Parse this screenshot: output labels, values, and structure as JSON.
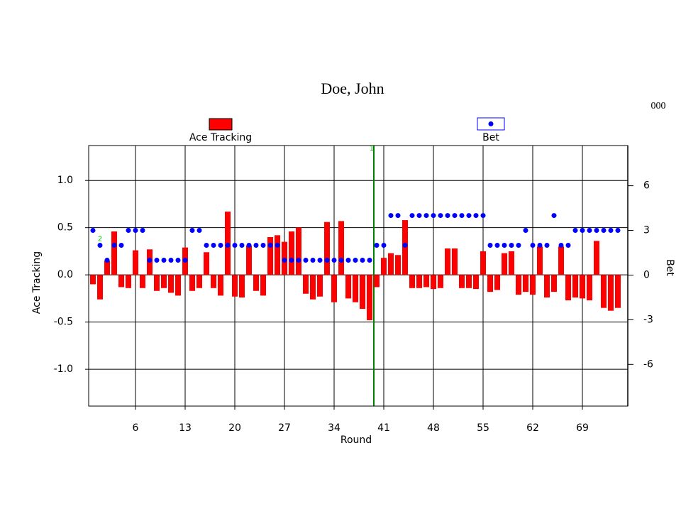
{
  "chart_data": {
    "type": "bar",
    "title": "Doe, John",
    "corner_text": "000",
    "xlabel": "Round",
    "ylabel": "Ace Tracking",
    "y2label": "Bet",
    "x": [
      0,
      1,
      2,
      3,
      4,
      5,
      6,
      7,
      8,
      9,
      10,
      11,
      12,
      13,
      14,
      15,
      16,
      17,
      18,
      19,
      20,
      21,
      22,
      23,
      24,
      25,
      26,
      27,
      28,
      29,
      30,
      31,
      32,
      33,
      34,
      35,
      36,
      37,
      38,
      39,
      40,
      41,
      42,
      43,
      44,
      45,
      46,
      47,
      48,
      49,
      50,
      51,
      52,
      53,
      54,
      55,
      56,
      57,
      58,
      59,
      60,
      61,
      62,
      63,
      64,
      65,
      66,
      67,
      68,
      69,
      70,
      71,
      72,
      73,
      74
    ],
    "series": [
      {
        "name": "Ace Tracking",
        "type": "bar",
        "color": "#ff0000",
        "axis": "y",
        "values": [
          -0.1,
          -0.26,
          0.15,
          0.46,
          -0.13,
          -0.14,
          0.26,
          -0.14,
          0.27,
          -0.17,
          -0.14,
          -0.19,
          -0.22,
          0.29,
          -0.17,
          -0.14,
          0.24,
          -0.14,
          -0.22,
          0.67,
          -0.23,
          -0.24,
          0.31,
          -0.17,
          -0.22,
          0.4,
          0.42,
          0.35,
          0.46,
          0.5,
          -0.2,
          -0.26,
          -0.23,
          0.56,
          -0.29,
          0.57,
          -0.25,
          -0.29,
          -0.36,
          -0.48,
          -0.13,
          0.18,
          0.23,
          0.21,
          0.58,
          -0.14,
          -0.14,
          -0.13,
          -0.15,
          -0.14,
          0.28,
          0.28,
          -0.14,
          -0.14,
          -0.15,
          0.25,
          -0.18,
          -0.16,
          0.23,
          0.25,
          -0.21,
          -0.18,
          -0.21,
          0.3,
          -0.24,
          -0.18,
          0.3,
          -0.27,
          -0.24,
          -0.25,
          -0.27,
          0.36,
          -0.35,
          -0.38,
          -0.35
        ]
      },
      {
        "name": "Bet",
        "type": "scatter",
        "color": "#0000ff",
        "axis": "y2",
        "values": [
          3,
          2,
          1,
          2,
          2,
          3,
          3,
          3,
          1,
          1,
          1,
          1,
          1,
          1,
          3,
          3,
          2,
          2,
          2,
          2,
          2,
          2,
          2,
          2,
          2,
          2,
          2,
          1,
          1,
          1,
          1,
          1,
          1,
          1,
          1,
          1,
          1,
          1,
          1,
          1,
          2,
          2,
          4,
          4,
          2,
          4,
          4,
          4,
          4,
          4,
          4,
          4,
          4,
          4,
          4,
          4,
          2,
          2,
          2,
          2,
          2,
          3,
          2,
          2,
          2,
          4,
          2,
          2,
          3,
          3,
          3,
          3,
          3,
          3,
          3
        ]
      }
    ],
    "xlim": [
      -0.6,
      75.4
    ],
    "xticks": [
      6,
      13,
      20,
      27,
      34,
      41,
      48,
      55,
      62,
      69
    ],
    "ylim": [
      -1.39,
      1.37
    ],
    "yticks": [
      {
        "value": -1,
        "label": "-1.0"
      },
      -0.5,
      {
        "value": 0,
        "label": "0.0"
      },
      0.5,
      {
        "value": 1,
        "label": "1.0"
      }
    ],
    "y2lim": [
      -8.8,
      8.7
    ],
    "y2ticks": [
      -6,
      -3,
      0,
      3,
      6
    ],
    "grid": true,
    "marker_line": {
      "x": 39.6,
      "color": "#008000"
    },
    "annotations": [
      {
        "text": "1",
        "x": 39.3,
        "y": 1.34,
        "color": "#00aa00"
      },
      {
        "text": "2",
        "x": 1,
        "y": 0.38,
        "color": "#00cc00"
      }
    ]
  }
}
